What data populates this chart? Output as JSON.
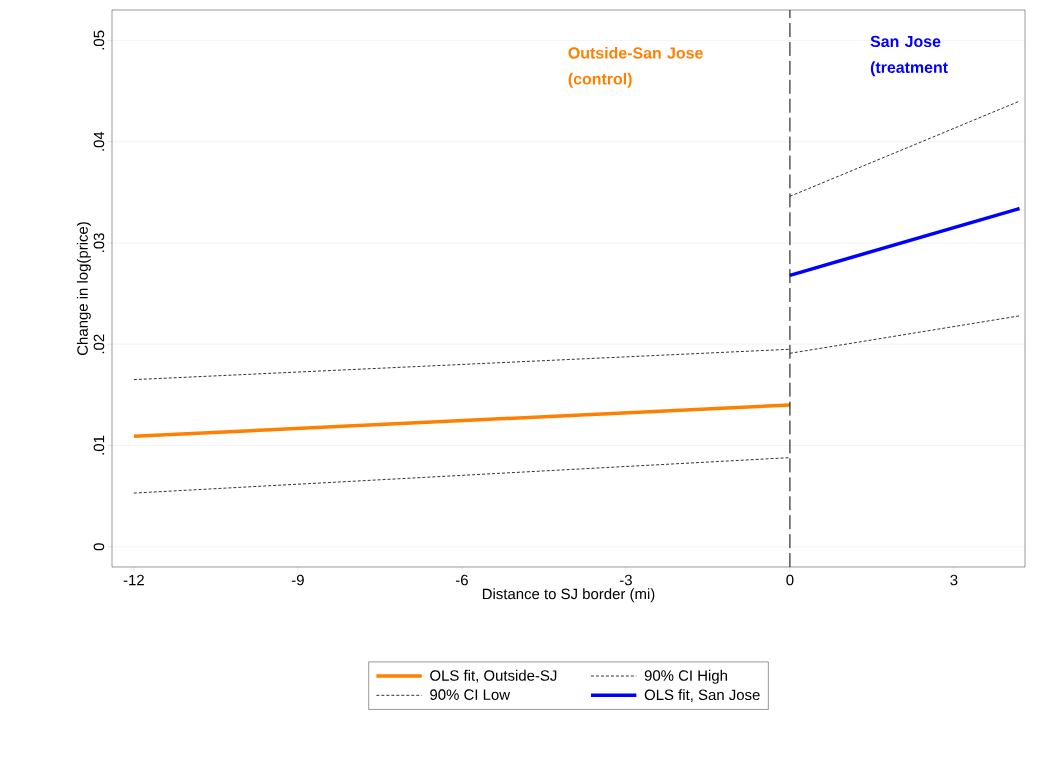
{
  "chart_data": {
    "type": "line",
    "xlabel": "Distance to SJ border (mi)",
    "ylabel": "Change in log(price)",
    "xlim": [
      -12.4,
      4.3
    ],
    "ylim": [
      -0.002,
      0.053
    ],
    "xticks": [
      -12,
      -9,
      -6,
      -3,
      0,
      3
    ],
    "yticks": [
      {
        "value": 0,
        "label": "0"
      },
      {
        "value": 0.01,
        "label": ".01"
      },
      {
        "value": 0.02,
        "label": ".02"
      },
      {
        "value": 0.03,
        "label": ".03"
      },
      {
        "value": 0.04,
        "label": ".04"
      },
      {
        "value": 0.05,
        "label": ".05"
      }
    ],
    "grid": "y",
    "legend": "bottom",
    "marker": "none",
    "series": [
      {
        "name": "OLS fit, Outside-SJ",
        "color": "#ff8000",
        "line_style": "solid",
        "x": [
          -12,
          0
        ],
        "values": [
          0.0109,
          0.014
        ]
      },
      {
        "name": "90% CI High",
        "color": "#000000",
        "line_style": "dashed",
        "x": [
          -12,
          0,
          null,
          0,
          4.2
        ],
        "values": [
          0.0165,
          0.0195,
          null,
          0.0346,
          0.044
        ]
      },
      {
        "name": "90% CI Low",
        "color": "#000000",
        "line_style": "dashed",
        "x": [
          -12,
          0,
          null,
          0,
          4.2
        ],
        "values": [
          0.0053,
          0.0088,
          null,
          0.0191,
          0.0228
        ]
      },
      {
        "name": "OLS fit, San Jose",
        "color": "#0000ff",
        "line_style": "solid",
        "x": [
          0,
          4.2
        ],
        "values": [
          0.0268,
          0.0334
        ]
      }
    ],
    "ref_lines": [
      {
        "axis": "x",
        "value": 0,
        "line_style": "dashed",
        "color": "#000000"
      }
    ],
    "annotations": [
      "Outside-San Jose (control)",
      "San Jose (treatment"
    ]
  }
}
